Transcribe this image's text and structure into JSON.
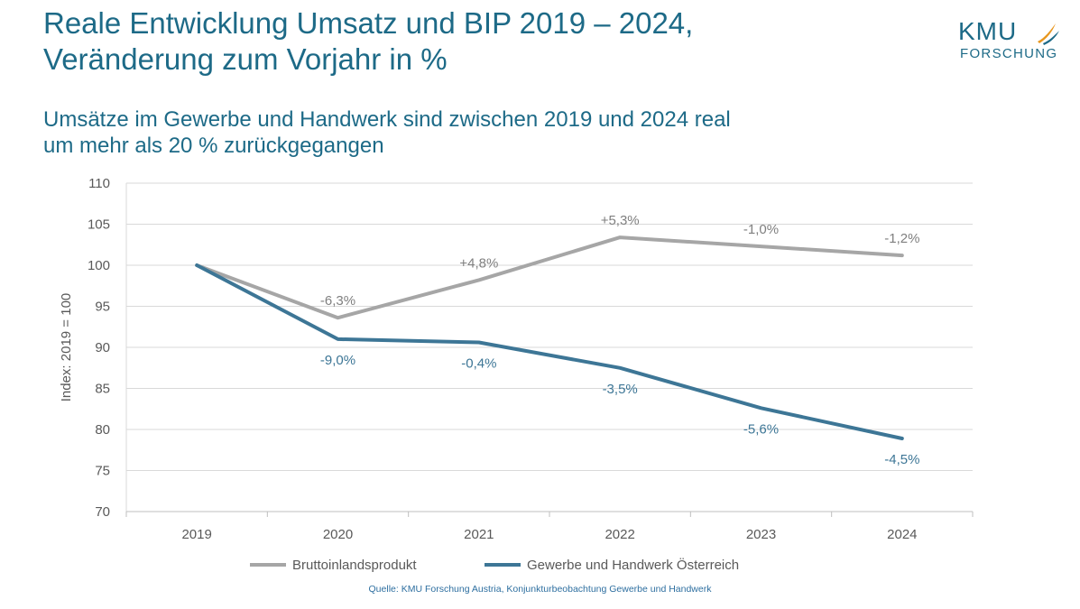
{
  "colors": {
    "title": "#1d6a87",
    "gdp_series": "#a6a6a6",
    "trade_series": "#3d7696",
    "axis_text": "#595959",
    "grid": "#d9d9d9",
    "source": "#2e6fa0",
    "logo_brand": "#1d6a87",
    "logo_accent": "#e8971f"
  },
  "header": {
    "title_line1": "Reale Entwicklung Umsatz und BIP 2019 – 2024,",
    "title_line2": "Veränderung zum Vorjahr in %",
    "subtitle_line1": "Umsätze im Gewerbe und Handwerk sind zwischen 2019 und 2024 real",
    "subtitle_line2": "um mehr als 20 % zurückgegangen"
  },
  "logo": {
    "brand": "KMU",
    "subline": "FORSCHUNG",
    "mark_icon": "kmu-bird-mark-icon"
  },
  "chart_data": {
    "type": "line",
    "title": "",
    "xlabel": "",
    "ylabel": "Index: 2019 = 100",
    "categories": [
      "2019",
      "2020",
      "2021",
      "2022",
      "2023",
      "2024"
    ],
    "ylim": [
      70,
      110
    ],
    "yticks": [
      70,
      75,
      80,
      85,
      90,
      95,
      100,
      105,
      110
    ],
    "grid": true,
    "legend_position": "bottom",
    "series": [
      {
        "name": "Bruttoinlandsprodukt",
        "values": [
          100,
          93.6,
          98.2,
          103.4,
          102.3,
          101.2
        ],
        "labels": [
          "",
          "-6,3%",
          "+4,8%",
          "+5,3%",
          "-1,0%",
          "-1,2%"
        ]
      },
      {
        "name": "Gewerbe und Handwerk Österreich",
        "values": [
          100,
          91.0,
          90.6,
          87.5,
          82.6,
          78.9
        ],
        "labels": [
          "",
          "-9,0%",
          "-0,4%",
          "-3,5%",
          "-5,6%",
          "-4,5%"
        ]
      }
    ]
  },
  "footer": {
    "source": "Quelle: KMU Forschung Austria, Konjunkturbeobachtung Gewerbe und Handwerk"
  }
}
